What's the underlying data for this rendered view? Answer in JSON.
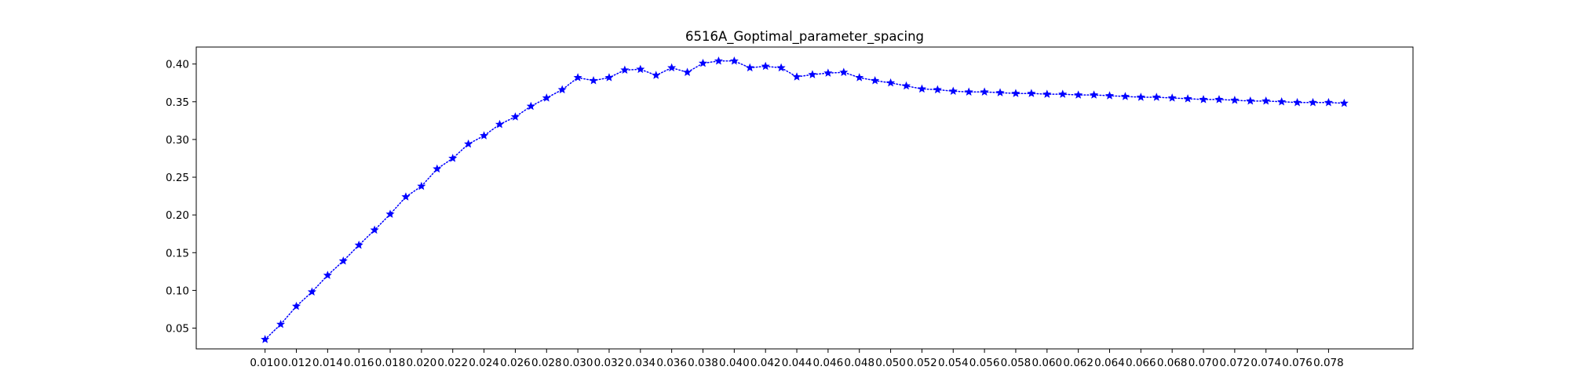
{
  "chart_data": {
    "type": "line",
    "title": "6516A_Goptimal_parameter_spacing",
    "xlabel": "",
    "ylabel": "",
    "xlim": [
      0.0056,
      0.0834
    ],
    "ylim": [
      0.0225,
      0.4225
    ],
    "grid": false,
    "x_ticks": [
      "0.010",
      "0.012",
      "0.014",
      "0.016",
      "0.018",
      "0.020",
      "0.022",
      "0.024",
      "0.026",
      "0.028",
      "0.030",
      "0.032",
      "0.034",
      "0.036",
      "0.038",
      "0.040",
      "0.042",
      "0.044",
      "0.046",
      "0.048",
      "0.050",
      "0.052",
      "0.054",
      "0.056",
      "0.058",
      "0.060",
      "0.062",
      "0.064",
      "0.066",
      "0.068",
      "0.070",
      "0.072",
      "0.074",
      "0.076",
      "0.078"
    ],
    "y_ticks": [
      "0.05",
      "0.10",
      "0.15",
      "0.20",
      "0.25",
      "0.30",
      "0.35",
      "0.40"
    ],
    "series": [
      {
        "color": "#0000ff",
        "line_style": "dotted",
        "marker": "star",
        "x": [
          0.01,
          0.011,
          0.012,
          0.013,
          0.014,
          0.015,
          0.016,
          0.017,
          0.018,
          0.019,
          0.02,
          0.021,
          0.022,
          0.023,
          0.024,
          0.025,
          0.026,
          0.027,
          0.028,
          0.029,
          0.03,
          0.031,
          0.032,
          0.033,
          0.034,
          0.035,
          0.036,
          0.037,
          0.038,
          0.039,
          0.04,
          0.041,
          0.042,
          0.043,
          0.044,
          0.045,
          0.046,
          0.047,
          0.048,
          0.049,
          0.05,
          0.051,
          0.052,
          0.053,
          0.054,
          0.055,
          0.056,
          0.057,
          0.058,
          0.059,
          0.06,
          0.061,
          0.062,
          0.063,
          0.064,
          0.065,
          0.066,
          0.067,
          0.068,
          0.069,
          0.07,
          0.071,
          0.072,
          0.073,
          0.074,
          0.075,
          0.076,
          0.077,
          0.078,
          0.079
        ],
        "y": [
          0.035,
          0.055,
          0.079,
          0.098,
          0.12,
          0.139,
          0.16,
          0.18,
          0.201,
          0.224,
          0.238,
          0.261,
          0.275,
          0.294,
          0.305,
          0.32,
          0.33,
          0.344,
          0.355,
          0.366,
          0.382,
          0.378,
          0.382,
          0.392,
          0.393,
          0.385,
          0.395,
          0.389,
          0.401,
          0.404,
          0.404,
          0.395,
          0.397,
          0.395,
          0.383,
          0.386,
          0.388,
          0.389,
          0.382,
          0.378,
          0.375,
          0.371,
          0.367,
          0.366,
          0.364,
          0.363,
          0.363,
          0.362,
          0.361,
          0.361,
          0.36,
          0.36,
          0.359,
          0.359,
          0.358,
          0.357,
          0.356,
          0.356,
          0.355,
          0.354,
          0.353,
          0.353,
          0.352,
          0.351,
          0.351,
          0.35,
          0.349,
          0.349,
          0.349,
          0.348
        ]
      }
    ]
  }
}
